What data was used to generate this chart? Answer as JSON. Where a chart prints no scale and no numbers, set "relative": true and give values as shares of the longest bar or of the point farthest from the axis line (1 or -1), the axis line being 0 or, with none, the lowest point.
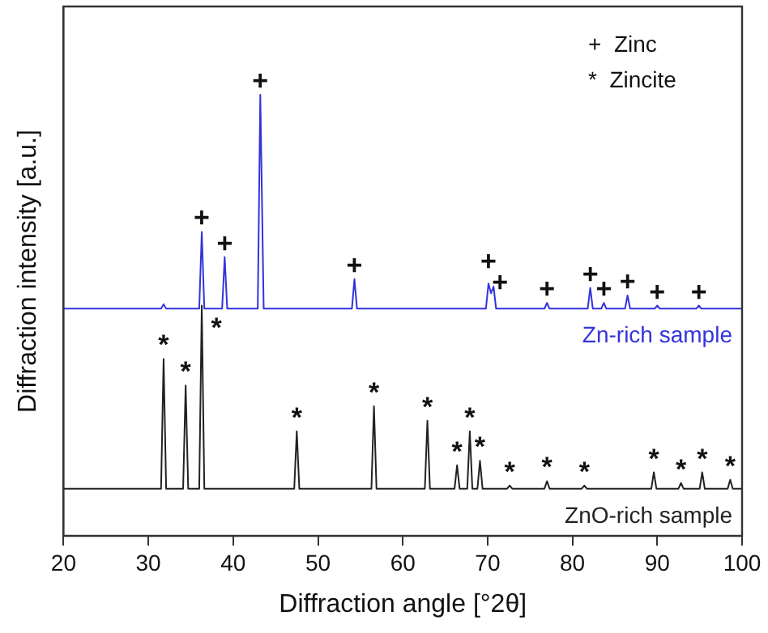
{
  "chart_data": {
    "type": "line",
    "relative": true,
    "xlabel": "Diffraction angle [°2θ]",
    "ylabel": "Diffraction intensity [a.u.]",
    "xlim": [
      20,
      100
    ],
    "xticks": [
      20,
      30,
      40,
      50,
      60,
      70,
      80,
      90,
      100
    ],
    "marker": "none",
    "line_style": "solid",
    "series": [
      {
        "name": "Zn-rich sample",
        "color": "#3333dd",
        "x": [
          20,
          31.5,
          31.8,
          32.1,
          36.0,
          36.3,
          36.6,
          38.7,
          39.0,
          39.3,
          42.9,
          43.2,
          43.6,
          54.0,
          54.3,
          54.6,
          69.8,
          70.1,
          70.4,
          70.7,
          71.0,
          76.7,
          77.0,
          77.3,
          81.8,
          82.1,
          82.4,
          83.4,
          83.7,
          84.0,
          86.2,
          86.5,
          86.8,
          89.7,
          90.0,
          90.3,
          94.6,
          94.9,
          95.2,
          100
        ],
        "values": [
          0.515,
          0.515,
          0.525,
          0.515,
          0.515,
          0.689,
          0.515,
          0.515,
          0.632,
          0.515,
          0.515,
          1,
          0.515,
          0.515,
          0.582,
          0.515,
          0.515,
          0.572,
          0.55,
          0.565,
          0.515,
          0.515,
          0.528,
          0.515,
          0.515,
          0.562,
          0.515,
          0.515,
          0.528,
          0.515,
          0.515,
          0.545,
          0.515,
          0.515,
          0.522,
          0.515,
          0.515,
          0.522,
          0.515,
          0.515
        ]
      },
      {
        "name": "ZnO-rich sample",
        "color": "#222222",
        "x": [
          20,
          31.5,
          31.8,
          32.1,
          34.1,
          34.4,
          34.7,
          36.0,
          36.3,
          36.6,
          47.2,
          47.5,
          47.8,
          56.3,
          56.6,
          56.9,
          62.6,
          62.9,
          63.2,
          66.1,
          66.4,
          66.7,
          67.6,
          67.9,
          68.2,
          68.8,
          69.1,
          69.4,
          72.3,
          72.6,
          72.9,
          76.7,
          77.0,
          77.3,
          81.1,
          81.4,
          81.7,
          89.3,
          89.6,
          89.9,
          92.5,
          92.8,
          93.1,
          95.0,
          95.3,
          95.6,
          98.3,
          98.6,
          98.9,
          100
        ],
        "values": [
          0.107,
          0.107,
          0.401,
          0.107,
          0.107,
          0.341,
          0.107,
          0.107,
          0.522,
          0.107,
          0.107,
          0.237,
          0.107,
          0.107,
          0.294,
          0.107,
          0.107,
          0.261,
          0.107,
          0.107,
          0.16,
          0.107,
          0.107,
          0.237,
          0.107,
          0.107,
          0.17,
          0.107,
          0.107,
          0.114,
          0.107,
          0.107,
          0.124,
          0.107,
          0.107,
          0.114,
          0.107,
          0.107,
          0.144,
          0.107,
          0.107,
          0.12,
          0.107,
          0.107,
          0.144,
          0.107,
          0.107,
          0.127,
          0.107,
          0.107
        ]
      }
    ],
    "annotations": [
      "+  Zinc",
      "*  Zincite",
      {
        "text": "+",
        "x": 36.3,
        "y": 0.689
      },
      {
        "text": "+",
        "x": 39.0,
        "y": 0.632
      },
      {
        "text": "+",
        "x": 43.2,
        "y": 1
      },
      {
        "text": "+",
        "x": 54.3,
        "y": 0.582
      },
      {
        "text": "+",
        "x": 70.1,
        "y": 0.572
      },
      {
        "text": "+",
        "x": 70.7,
        "y": 0.565
      },
      {
        "text": "+",
        "x": 77.0,
        "y": 0.528
      },
      {
        "text": "+",
        "x": 82.1,
        "y": 0.562
      },
      {
        "text": "+",
        "x": 83.7,
        "y": 0.528
      },
      {
        "text": "+",
        "x": 86.5,
        "y": 0.545
      },
      {
        "text": "+",
        "x": 90.0,
        "y": 0.522
      },
      {
        "text": "+",
        "x": 94.9,
        "y": 0.522
      },
      {
        "text": "*",
        "x": 31.8,
        "y": 0.401
      },
      {
        "text": "*",
        "x": 34.4,
        "y": 0.341
      },
      {
        "text": "*",
        "x": 36.3,
        "y": 0.522
      },
      {
        "text": "*",
        "x": 47.5,
        "y": 0.237
      },
      {
        "text": "*",
        "x": 56.6,
        "y": 0.294
      },
      {
        "text": "*",
        "x": 62.9,
        "y": 0.261
      },
      {
        "text": "*",
        "x": 66.4,
        "y": 0.16
      },
      {
        "text": "*",
        "x": 67.9,
        "y": 0.237
      },
      {
        "text": "*",
        "x": 69.1,
        "y": 0.17
      },
      {
        "text": "*",
        "x": 72.6,
        "y": 0.114
      },
      {
        "text": "*",
        "x": 77.0,
        "y": 0.124
      },
      {
        "text": "*",
        "x": 81.4,
        "y": 0.114
      },
      {
        "text": "*",
        "x": 89.6,
        "y": 0.144
      },
      {
        "text": "*",
        "x": 92.8,
        "y": 0.12
      },
      {
        "text": "*",
        "x": 95.3,
        "y": 0.144
      },
      {
        "text": "*",
        "x": 98.6,
        "y": 0.127
      }
    ]
  }
}
